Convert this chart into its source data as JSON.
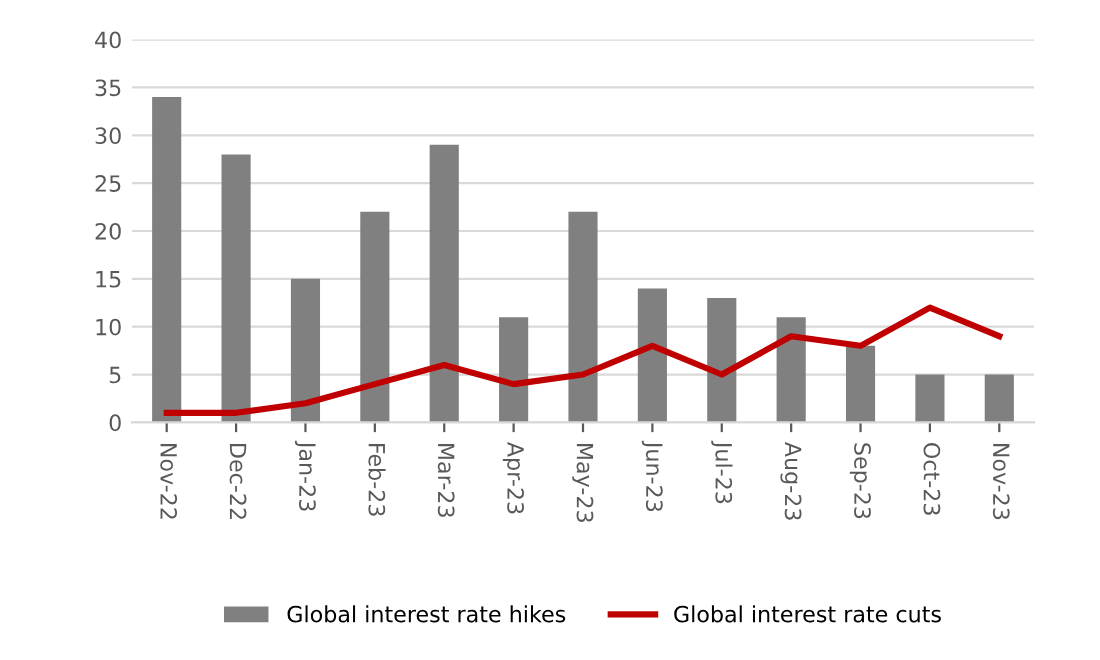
{
  "chart_data": {
    "type": "bar",
    "categories": [
      "Nov-22",
      "Dec-22",
      "Jan-23",
      "Feb-23",
      "Mar-23",
      "Apr-23",
      "May-23",
      "Jun-23",
      "Jul-23",
      "Aug-23",
      "Sep-23",
      "Oct-23",
      "Nov-23"
    ],
    "series": [
      {
        "name": "Global interest rate hikes",
        "color": "#808080",
        "values": [
          34,
          28,
          15,
          22,
          29,
          11,
          22,
          14,
          13,
          11,
          8,
          5,
          5
        ]
      },
      {
        "name": "Global interest rate cuts",
        "type": "line",
        "color": "#c00000",
        "values": [
          1,
          1,
          2,
          4,
          6,
          4,
          5,
          8,
          5,
          9,
          8,
          12,
          9
        ]
      }
    ],
    "ylim": [
      0,
      40
    ],
    "yticks": [
      0,
      5,
      10,
      15,
      20,
      25,
      30,
      35,
      40
    ],
    "grid": "y",
    "legend": "bottom",
    "marker": "none",
    "line_style": "solid"
  }
}
